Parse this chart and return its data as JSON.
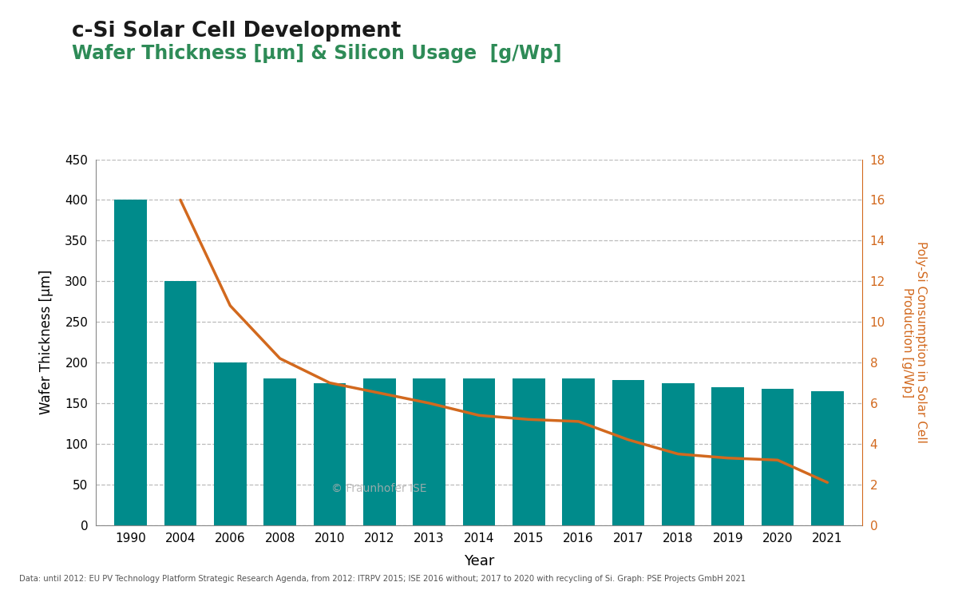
{
  "title_black": "c-Si Solar Cell Development",
  "title_green": "Wafer Thickness [μm] & Silicon Usage  [g/Wp]",
  "xlabel": "Year",
  "ylabel_left": "Wafer Thickness [μm]",
  "ylabel_right": "Poly-Si Consumption in Solar Cell\nProduction [g/Wp]",
  "footnote": "Data: until 2012: EU PV Technology Platform Strategic Research Agenda, from 2012: ITRPV 2015; ISE 2016 without; 2017 to 2020 with recycling of Si. Graph: PSE Projects GmbH 2021",
  "watermark": "© Fraunhofer ISE",
  "bar_labels": [
    "1990",
    "2004",
    "2006",
    "2008",
    "2010",
    "2012",
    "2013",
    "2014",
    "2015",
    "2016",
    "2017",
    "2018",
    "2019",
    "2020",
    "2021"
  ],
  "bar_values": [
    400,
    300,
    200,
    180,
    175,
    180,
    180,
    180,
    180,
    180,
    178,
    175,
    170,
    168,
    165
  ],
  "bar_color": "#008B8B",
  "line_indices": [
    1,
    2,
    3,
    4,
    5,
    6,
    7,
    8,
    9,
    10,
    11,
    12,
    13,
    14
  ],
  "line_values": [
    16.0,
    10.8,
    8.2,
    7.0,
    6.5,
    6.0,
    5.4,
    5.2,
    5.1,
    4.2,
    3.5,
    3.3,
    3.2,
    2.1
  ],
  "line_color": "#D2691E",
  "ylim_left": [
    0,
    450
  ],
  "ylim_right": [
    0,
    18
  ],
  "yticks_left": [
    0,
    50,
    100,
    150,
    200,
    250,
    300,
    350,
    400,
    450
  ],
  "yticks_right": [
    0,
    2,
    4,
    6,
    8,
    10,
    12,
    14,
    16,
    18
  ],
  "title_black_color": "#1a1a1a",
  "title_green_color": "#2E8B57",
  "ylabel_right_color": "#D2691E",
  "background_color": "#ffffff",
  "grid_color": "#bbbbbb",
  "bar_width": 0.65,
  "xlim": [
    -0.7,
    14.7
  ]
}
